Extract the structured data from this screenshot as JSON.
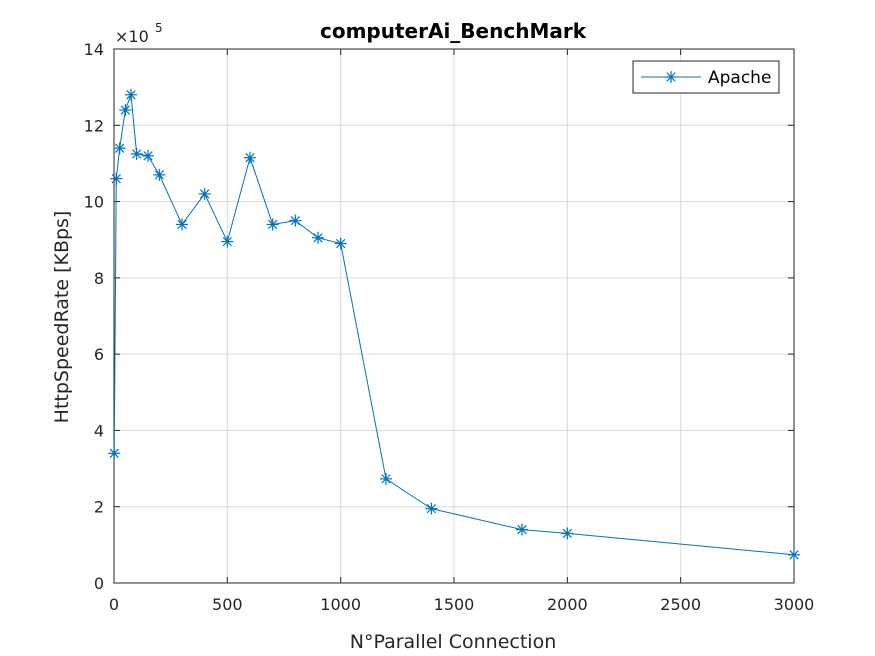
{
  "chart_data": {
    "type": "line",
    "title": "computerAi_BenchMark",
    "xlabel": "N°Parallel Connection",
    "ylabel": "HttpSpeedRate [KBps]",
    "y_exponent_label": "×10",
    "y_exponent_power": "5",
    "xlim": [
      0,
      3000
    ],
    "ylim": [
      0,
      14
    ],
    "xticks": [
      0,
      500,
      1000,
      1500,
      2000,
      2500,
      3000
    ],
    "yticks": [
      0,
      2,
      4,
      6,
      8,
      10,
      12,
      14
    ],
    "xtick_labels": [
      "0",
      "500",
      "1000",
      "1500",
      "2000",
      "2500",
      "3000"
    ],
    "ytick_labels": [
      "0",
      "2",
      "4",
      "6",
      "8",
      "10",
      "12",
      "14"
    ],
    "grid": true,
    "legend_position": "top-right",
    "series": [
      {
        "name": "Apache",
        "color": "#0072BD",
        "marker": "asterisk",
        "x": [
          1,
          10,
          25,
          50,
          75,
          100,
          150,
          200,
          300,
          400,
          500,
          600,
          700,
          800,
          900,
          1000,
          1200,
          1400,
          1800,
          2000,
          3000
        ],
        "y": [
          3.4,
          10.6,
          11.4,
          12.4,
          12.8,
          11.25,
          11.2,
          10.7,
          9.4,
          10.2,
          8.95,
          11.15,
          9.4,
          9.5,
          9.05,
          8.9,
          2.73,
          1.95,
          1.4,
          1.3,
          0.74
        ]
      }
    ]
  }
}
